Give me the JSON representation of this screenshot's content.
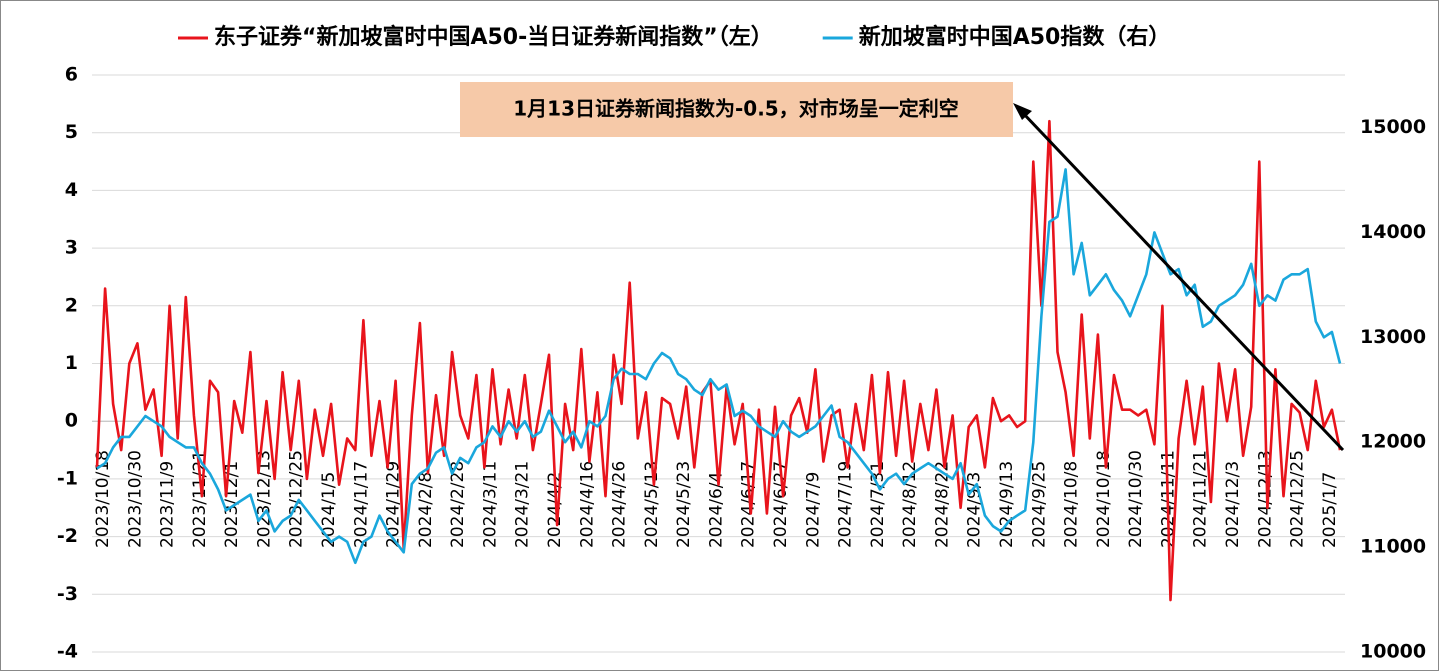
{
  "chart_data": {
    "type": "line",
    "annotation": "1月13日证券新闻指数为-0.5，对市场呈一定利空",
    "categories": [
      "2023/10/18",
      null,
      null,
      null,
      "2023/10/30",
      null,
      null,
      null,
      "2023/11/9",
      null,
      null,
      null,
      "2023/11/21",
      null,
      null,
      null,
      "2023/12/1",
      null,
      null,
      null,
      "2023/12/13",
      null,
      null,
      null,
      "2023/12/25",
      null,
      null,
      null,
      "2024/1/5",
      null,
      null,
      null,
      "2024/1/17",
      null,
      null,
      null,
      "2024/1/29",
      null,
      null,
      null,
      "2024/2/8",
      null,
      null,
      null,
      "2024/2/28",
      null,
      null,
      null,
      "2024/3/11",
      null,
      null,
      null,
      "2024/3/21",
      null,
      null,
      null,
      "2024/4/2",
      null,
      null,
      null,
      "2024/4/16",
      null,
      null,
      null,
      "2024/4/26",
      null,
      null,
      null,
      "2024/5/13",
      null,
      null,
      null,
      "2024/5/23",
      null,
      null,
      null,
      "2024/6/4",
      null,
      null,
      null,
      "2024/6/17",
      null,
      null,
      null,
      "2024/6/27",
      null,
      null,
      null,
      "2024/7/9",
      null,
      null,
      null,
      "2024/7/19",
      null,
      null,
      null,
      "2024/7/31",
      null,
      null,
      null,
      "2024/8/12",
      null,
      null,
      null,
      "2024/8/22",
      null,
      null,
      null,
      "2024/9/3",
      null,
      null,
      null,
      "2024/9/13",
      null,
      null,
      null,
      "2024/9/25",
      null,
      null,
      null,
      "2024/10/8",
      null,
      null,
      null,
      "2024/10/18",
      null,
      null,
      null,
      "2024/10/30",
      null,
      null,
      null,
      "2024/11/11",
      null,
      null,
      null,
      "2024/11/21",
      null,
      null,
      null,
      "2024/12/3",
      null,
      null,
      null,
      "2024/12/13",
      null,
      null,
      null,
      "2024/12/25",
      null,
      null,
      null,
      "2025/1/7",
      null,
      null
    ],
    "series": [
      {
        "name": "东子证券“新加坡富时中国A50-当日证券新闻指数”（左）",
        "color": "#e8141c",
        "axis": "y",
        "values": [
          -0.8,
          2.3,
          0.3,
          -0.5,
          1.0,
          1.35,
          0.2,
          0.55,
          -0.6,
          2.0,
          -0.3,
          2.15,
          0.1,
          -1.3,
          0.7,
          0.5,
          -1.3,
          0.35,
          -0.2,
          1.2,
          -0.9,
          0.35,
          -1.0,
          0.85,
          -0.5,
          0.7,
          -1.0,
          0.2,
          -0.6,
          0.3,
          -1.1,
          -0.3,
          -0.5,
          1.75,
          -0.6,
          0.35,
          -0.8,
          0.7,
          -2.2,
          0.1,
          1.7,
          -0.9,
          0.45,
          -0.6,
          1.2,
          0.1,
          -0.3,
          0.8,
          -0.8,
          0.9,
          -0.4,
          0.55,
          -0.3,
          0.8,
          -0.5,
          0.3,
          1.15,
          -1.8,
          0.3,
          -0.5,
          1.25,
          -0.7,
          0.5,
          -1.3,
          1.15,
          0.3,
          2.4,
          -0.3,
          0.5,
          -1.1,
          0.4,
          0.3,
          -0.3,
          0.6,
          -0.8,
          0.5,
          0.7,
          -1.1,
          0.6,
          -0.4,
          0.3,
          -1.6,
          0.2,
          -1.6,
          0.25,
          -1.3,
          0.1,
          0.4,
          -0.2,
          0.9,
          -0.7,
          0.1,
          0.2,
          -0.8,
          0.3,
          -0.5,
          0.8,
          -0.9,
          0.85,
          -0.6,
          0.7,
          -0.7,
          0.3,
          -0.5,
          0.55,
          -0.8,
          0.1,
          -1.5,
          -0.1,
          0.1,
          -0.8,
          0.4,
          0.0,
          0.1,
          -0.1,
          0.0,
          4.5,
          2.0,
          5.2,
          1.2,
          0.5,
          -0.6,
          1.85,
          -0.3,
          1.5,
          -0.8,
          0.8,
          0.2,
          0.2,
          0.1,
          0.2,
          -0.4,
          2.0,
          -3.1,
          -0.3,
          0.7,
          -0.4,
          0.6,
          -1.4,
          1.0,
          0.0,
          0.9,
          -0.6,
          0.25,
          4.5,
          -1.5,
          0.9,
          -1.3,
          0.3,
          0.15,
          -0.5,
          0.7,
          -0.1,
          0.2,
          -0.5
        ]
      },
      {
        "name": "新加坡富时中国A50指数（右）",
        "color": "#1aa7dc",
        "axis": "y2",
        "values": [
          11750,
          11800,
          11950,
          12050,
          12050,
          12150,
          12250,
          12200,
          12150,
          12050,
          12000,
          11950,
          11950,
          11800,
          11700,
          11550,
          11350,
          11400,
          11450,
          11500,
          11250,
          11350,
          11150,
          11250,
          11300,
          11450,
          11350,
          11250,
          11150,
          11050,
          11100,
          11050,
          10850,
          11050,
          11100,
          11300,
          11150,
          11050,
          10950,
          11600,
          11700,
          11750,
          11900,
          11950,
          11700,
          11850,
          11800,
          11950,
          12000,
          12150,
          12050,
          12200,
          12100,
          12200,
          12050,
          12100,
          12300,
          12150,
          12000,
          12100,
          11950,
          12200,
          12150,
          12250,
          12600,
          12700,
          12650,
          12650,
          12600,
          12750,
          12850,
          12800,
          12650,
          12600,
          12500,
          12450,
          12600,
          12500,
          12550,
          12250,
          12300,
          12250,
          12150,
          12100,
          12050,
          12200,
          12100,
          12050,
          12100,
          12150,
          12250,
          12350,
          12050,
          12000,
          11900,
          11800,
          11700,
          11550,
          11650,
          11700,
          11600,
          11700,
          11750,
          11800,
          11750,
          11700,
          11650,
          11800,
          11500,
          11600,
          11300,
          11200,
          11150,
          11250,
          11300,
          11350,
          12000,
          13200,
          14100,
          14150,
          14600,
          13600,
          13900,
          13400,
          13500,
          13600,
          13450,
          13350,
          13200,
          13400,
          13600,
          14000,
          13800,
          13600,
          13650,
          13400,
          13500,
          13100,
          13150,
          13300,
          13350,
          13400,
          13500,
          13700,
          13300,
          13400,
          13350,
          13550,
          13600,
          13600,
          13650,
          13150,
          13000,
          13050,
          12750
        ]
      }
    ],
    "ylim": [
      -4,
      6
    ],
    "yticks": [
      -4,
      -3,
      -2,
      -1,
      0,
      1,
      2,
      3,
      4,
      5,
      6
    ],
    "y2lim": [
      10000,
      15500
    ],
    "y2ticks": [
      10000,
      11000,
      12000,
      13000,
      14000,
      15000
    ],
    "grid": true
  }
}
